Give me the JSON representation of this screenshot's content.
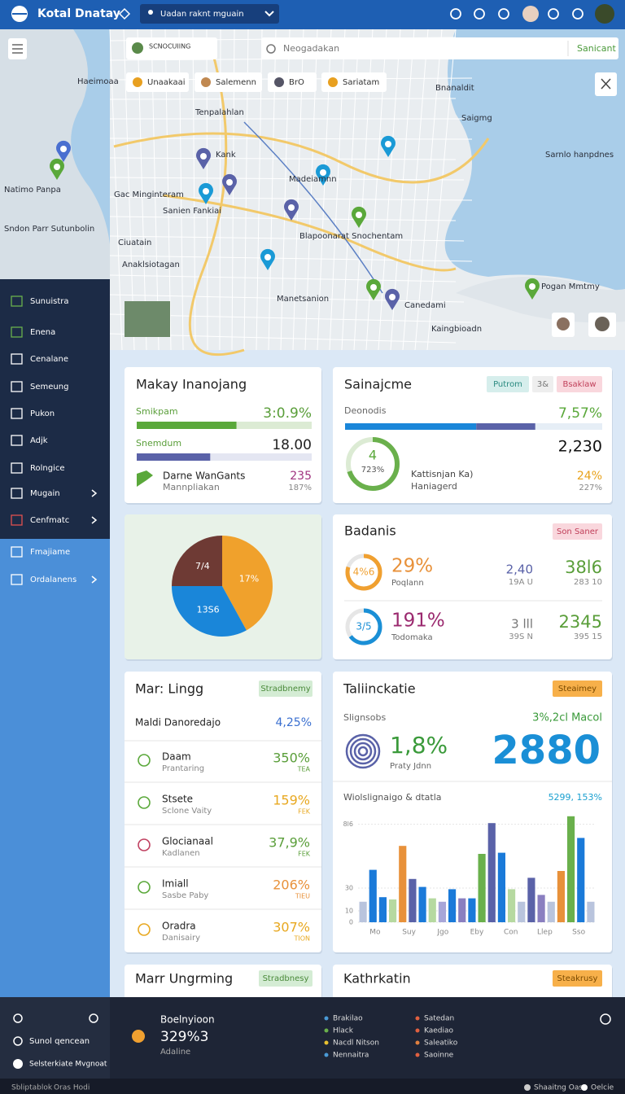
{
  "topbar": {
    "title": "Kotal Dnatay",
    "selector": "Uadan raknt mguain"
  },
  "map": {
    "filter": "SCNOCUIING",
    "search_placeholder": "Neogadakan",
    "search_button": "Sanicant",
    "chips": [
      "Unaakaai",
      "Salemenn",
      "BrO",
      "Sariatam"
    ],
    "labels": [
      "Haeimoaa",
      "Natimo Panpa",
      "Sndon Parr Sutunbolin",
      "Tenpalahlan",
      "Bnanaldit",
      "Saigmg",
      "Sarnlo hanpdnes",
      "Kank",
      "Madeiamnn",
      "Gac Minginteram",
      "Sanien Fankiai",
      "Blapoonarat Snochentam",
      "Ciuatain",
      "Anaklsiotagan",
      "Manetsanion",
      "Canedami",
      "Pogan Mmtmy",
      "Kaingbioadn"
    ]
  },
  "sidebar": {
    "items": [
      "Sunuistra",
      "Enena",
      "Cenalane",
      "Semeung",
      "Pukon",
      "Adjk",
      "Rolngice",
      "Mugain",
      "Cenfmatc",
      "Fmajiame",
      "Ordalanens"
    ]
  },
  "card1": {
    "title": "Makay Inanojang",
    "rows": [
      {
        "label": "Smikpam",
        "value": "3:0.9%",
        "progress": 57
      },
      {
        "label": "Snemdum",
        "value": "18.00",
        "progress": 42
      }
    ],
    "item": {
      "name": "Darne WanGants",
      "sub": "Mannpliakan",
      "value": "235",
      "sub_value": "187%"
    }
  },
  "card2": {
    "title": "Sainajcme",
    "chips": [
      "Putrom",
      "3&",
      "Bsaklaw"
    ],
    "label": "Deonodis",
    "value": "7,57%",
    "segments": [
      51,
      23,
      26
    ],
    "segment_colors": [
      "#1a86d9",
      "#5a62a8",
      "#e6eef6"
    ],
    "big": "2,230",
    "donut": {
      "progress": 70,
      "label": "4",
      "sub": "723%"
    },
    "item": {
      "name": "Kattisnjan Ka)",
      "sub": "Haniagerd",
      "value": "24%",
      "sub_value": "227%"
    }
  },
  "chart_data": {
    "type": "pie",
    "values": [
      42,
      33,
      25
    ],
    "colors": [
      "#f0a12c",
      "#1a86d9",
      "#6e3a34"
    ],
    "labels": [
      "17%",
      "13S6",
      "7/4"
    ]
  },
  "card4": {
    "title": "Badanis",
    "chip": "Son Saner",
    "rows": [
      {
        "progress": 80,
        "gauge_label": "4%6",
        "value": "29%",
        "sub": "Poqlann",
        "mid": "2,40",
        "mid_sub": "19A U",
        "right": "38l6",
        "right_sub": "283 10"
      },
      {
        "progress": 65,
        "gauge_label": "3/5",
        "value": "191%",
        "sub": "Todomaka",
        "mid": "3 lll",
        "mid_sub": "39S N",
        "right": "2345",
        "right_sub": "395 15"
      }
    ]
  },
  "card5": {
    "title": "Mar: Lingg",
    "chip": "Stradbnemy",
    "header": "Maldi Danoredajo",
    "header_value": "4,25%",
    "items": [
      {
        "name": "Daam",
        "sub": "Prantaring",
        "value": "350%",
        "tag": "TEA"
      },
      {
        "name": "Stsete",
        "sub": "Sclone Vaity",
        "value": "159%",
        "tag": "FEK"
      },
      {
        "name": "Glocianaal",
        "sub": "Kadlanen",
        "value": "37,9%",
        "tag": "FEK"
      },
      {
        "name": "Imiall",
        "sub": "Sasbe Paby",
        "value": "206%",
        "tag": "TIEU"
      },
      {
        "name": "Oradra",
        "sub": "Danisairy",
        "value": "307%",
        "tag": "TION"
      }
    ]
  },
  "card6": {
    "title": "Taliinckatie",
    "chip": "Steaimey",
    "label": "Slignsobs",
    "label_value": "3%,2cl Macol",
    "value": "1,8%",
    "sub": "Praty Jdnn",
    "big": "2880",
    "chart": {
      "type": "bar",
      "title": "Wiolslignaigo & dtatla",
      "note": "5299, 153%",
      "categories": [
        "Mo",
        "Suy",
        "Jgo",
        "Eby",
        "Con",
        "Llep",
        "Sso"
      ],
      "values": [
        18,
        46,
        22,
        20,
        67,
        38,
        31,
        21,
        18,
        29,
        21,
        21,
        60,
        87,
        61,
        29,
        18,
        39,
        24,
        18,
        45,
        93,
        74,
        18
      ],
      "colors": [
        "#b9c4dd",
        "#1a7ad9",
        "#1a7ad9",
        "#b6d9a0",
        "#e8913a",
        "#5a62a8",
        "#1a7ad9",
        "#b6d9a0",
        "#a8a6d8",
        "#1a7ad9",
        "#8a7fc0",
        "#1a7ad9",
        "#6ab04c",
        "#5a62a8",
        "#1a7ad9",
        "#b6d9a0",
        "#b9c4dd",
        "#5a62a8",
        "#8a7fc0",
        "#b9c4dd",
        "#e8913a",
        "#6ab04c",
        "#1a7ad9",
        "#b9c4dd"
      ],
      "ylim": [
        0,
        95
      ],
      "yticks": [
        0,
        10,
        30,
        {
          "value": 86,
          "label": "8l6"
        }
      ],
      "grid": true
    }
  },
  "card7": {
    "title": "Marr Ungrming",
    "chip": "Stradbnesy"
  },
  "card8": {
    "title": "Kathrkatin",
    "chip": "Steakrusy"
  },
  "footer": {
    "left": [
      "Sunol qencean",
      "Selsterkiate Mvgnoat"
    ],
    "stat_title": "Boelnyioon",
    "stat_value": "329%3",
    "stat_sub": "Adaline",
    "legend_left": [
      {
        "name": "Brakilao",
        "color": "#4a9ad6"
      },
      {
        "name": "Hlack",
        "color": "#6ab04c"
      },
      {
        "name": "Nacdl Nitson",
        "color": "#e8c030"
      },
      {
        "name": "Nennaitra",
        "color": "#4a9ad6"
      }
    ],
    "legend_right": [
      {
        "name": "Satedan",
        "color": "#e06040"
      },
      {
        "name": "Kaediao",
        "color": "#e06040"
      },
      {
        "name": "Saleatiko",
        "color": "#e08040"
      },
      {
        "name": "Saoinne",
        "color": "#e06040"
      }
    ],
    "bottom_left": [
      "Sbliptablok",
      "Oras Hodi"
    ],
    "bottom_right": [
      "Shaaitng Oasr",
      "Oelcie"
    ]
  }
}
